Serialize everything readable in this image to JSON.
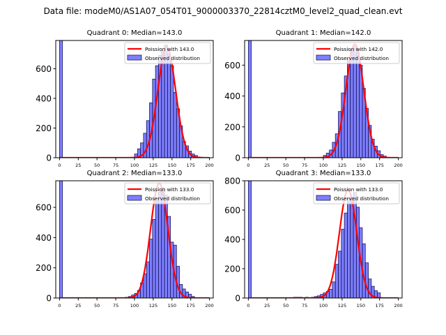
{
  "suptitle": "Data file: modeM0/AS1A07_054T01_9000003370_22814cztM0_level2_quad_clean.evt",
  "chart_data": [
    {
      "type": "bar",
      "title": "Quadrant 0: Median=143.0",
      "legend": [
        "Poission with 143.0",
        "Observed distribution"
      ],
      "legend_loc": "top-right",
      "xlim": [
        -5,
        205
      ],
      "ylim": [
        0,
        790
      ],
      "xticks": [
        0,
        25,
        50,
        75,
        100,
        125,
        150,
        175,
        200
      ],
      "yticks": [
        0,
        200,
        400,
        600
      ],
      "bin_width": 4,
      "bins": [
        0,
        100,
        104,
        108,
        112,
        116,
        120,
        124,
        128,
        132,
        136,
        140,
        144,
        148,
        152,
        156,
        160,
        164,
        168,
        172,
        176,
        180,
        184
      ],
      "values": [
        2000,
        25,
        60,
        100,
        165,
        250,
        370,
        530,
        620,
        690,
        720,
        760,
        700,
        620,
        440,
        330,
        215,
        110,
        80,
        45,
        25,
        15,
        5
      ],
      "poisson_mean": 143,
      "poisson_peak": 745
    },
    {
      "type": "bar",
      "title": "Quadrant 1: Median=142.0",
      "legend": [
        "Poission with 142.0",
        "Observed distribution"
      ],
      "legend_loc": "top-right",
      "xlim": [
        -5,
        205
      ],
      "ylim": [
        0,
        760
      ],
      "xticks": [
        0,
        25,
        50,
        75,
        100,
        125,
        150,
        175,
        200
      ],
      "yticks": [
        0,
        200,
        400,
        600
      ],
      "bin_width": 4,
      "bins": [
        0,
        100,
        104,
        108,
        112,
        116,
        120,
        124,
        128,
        132,
        136,
        140,
        144,
        148,
        152,
        156,
        160,
        164,
        168,
        172,
        176,
        180
      ],
      "values": [
        2000,
        15,
        30,
        50,
        100,
        155,
        300,
        420,
        530,
        640,
        700,
        720,
        680,
        600,
        450,
        320,
        210,
        120,
        75,
        45,
        20,
        10
      ],
      "poisson_mean": 142,
      "poisson_peak": 735
    },
    {
      "type": "bar",
      "title": "Quadrant 2: Median=133.0",
      "legend": [
        "Poission with 133.0",
        "Observed distribution"
      ],
      "legend_loc": "top-right",
      "xlim": [
        -5,
        205
      ],
      "ylim": [
        0,
        776
      ],
      "xticks": [
        0,
        25,
        50,
        75,
        100,
        125,
        150,
        175,
        200
      ],
      "yticks": [
        0,
        200,
        400,
        600
      ],
      "bin_width": 4,
      "bins": [
        0,
        88,
        92,
        96,
        100,
        104,
        108,
        112,
        116,
        120,
        124,
        128,
        132,
        136,
        140,
        144,
        148,
        152,
        156,
        160,
        164,
        168,
        172,
        176
      ],
      "values": [
        2000,
        5,
        10,
        20,
        30,
        50,
        100,
        160,
        240,
        390,
        520,
        640,
        700,
        730,
        680,
        540,
        370,
        350,
        210,
        90,
        60,
        40,
        25,
        10
      ],
      "poisson_mean": 133,
      "poisson_peak": 760
    },
    {
      "type": "bar",
      "title": "Quadrant 3: Median=133.0",
      "legend": [
        "Poission with 133.0",
        "Observed distribution"
      ],
      "legend_loc": "top-right",
      "xlim": [
        -5,
        205
      ],
      "ylim": [
        0,
        800
      ],
      "xticks": [
        0,
        25,
        50,
        75,
        100,
        125,
        150,
        175,
        200
      ],
      "yticks": [
        0,
        200,
        400,
        600,
        800
      ],
      "bin_width": 4,
      "bins": [
        0,
        60,
        64,
        68,
        76,
        84,
        88,
        92,
        96,
        100,
        104,
        108,
        112,
        116,
        120,
        124,
        128,
        132,
        136,
        140,
        144,
        148,
        152,
        156,
        160,
        164,
        168,
        172
      ],
      "values": [
        2000,
        5,
        5,
        5,
        5,
        5,
        10,
        15,
        25,
        35,
        45,
        60,
        110,
        230,
        320,
        470,
        580,
        680,
        690,
        720,
        620,
        480,
        370,
        240,
        130,
        80,
        50,
        35
      ],
      "poisson_mean": 133,
      "poisson_peak": 740
    }
  ]
}
